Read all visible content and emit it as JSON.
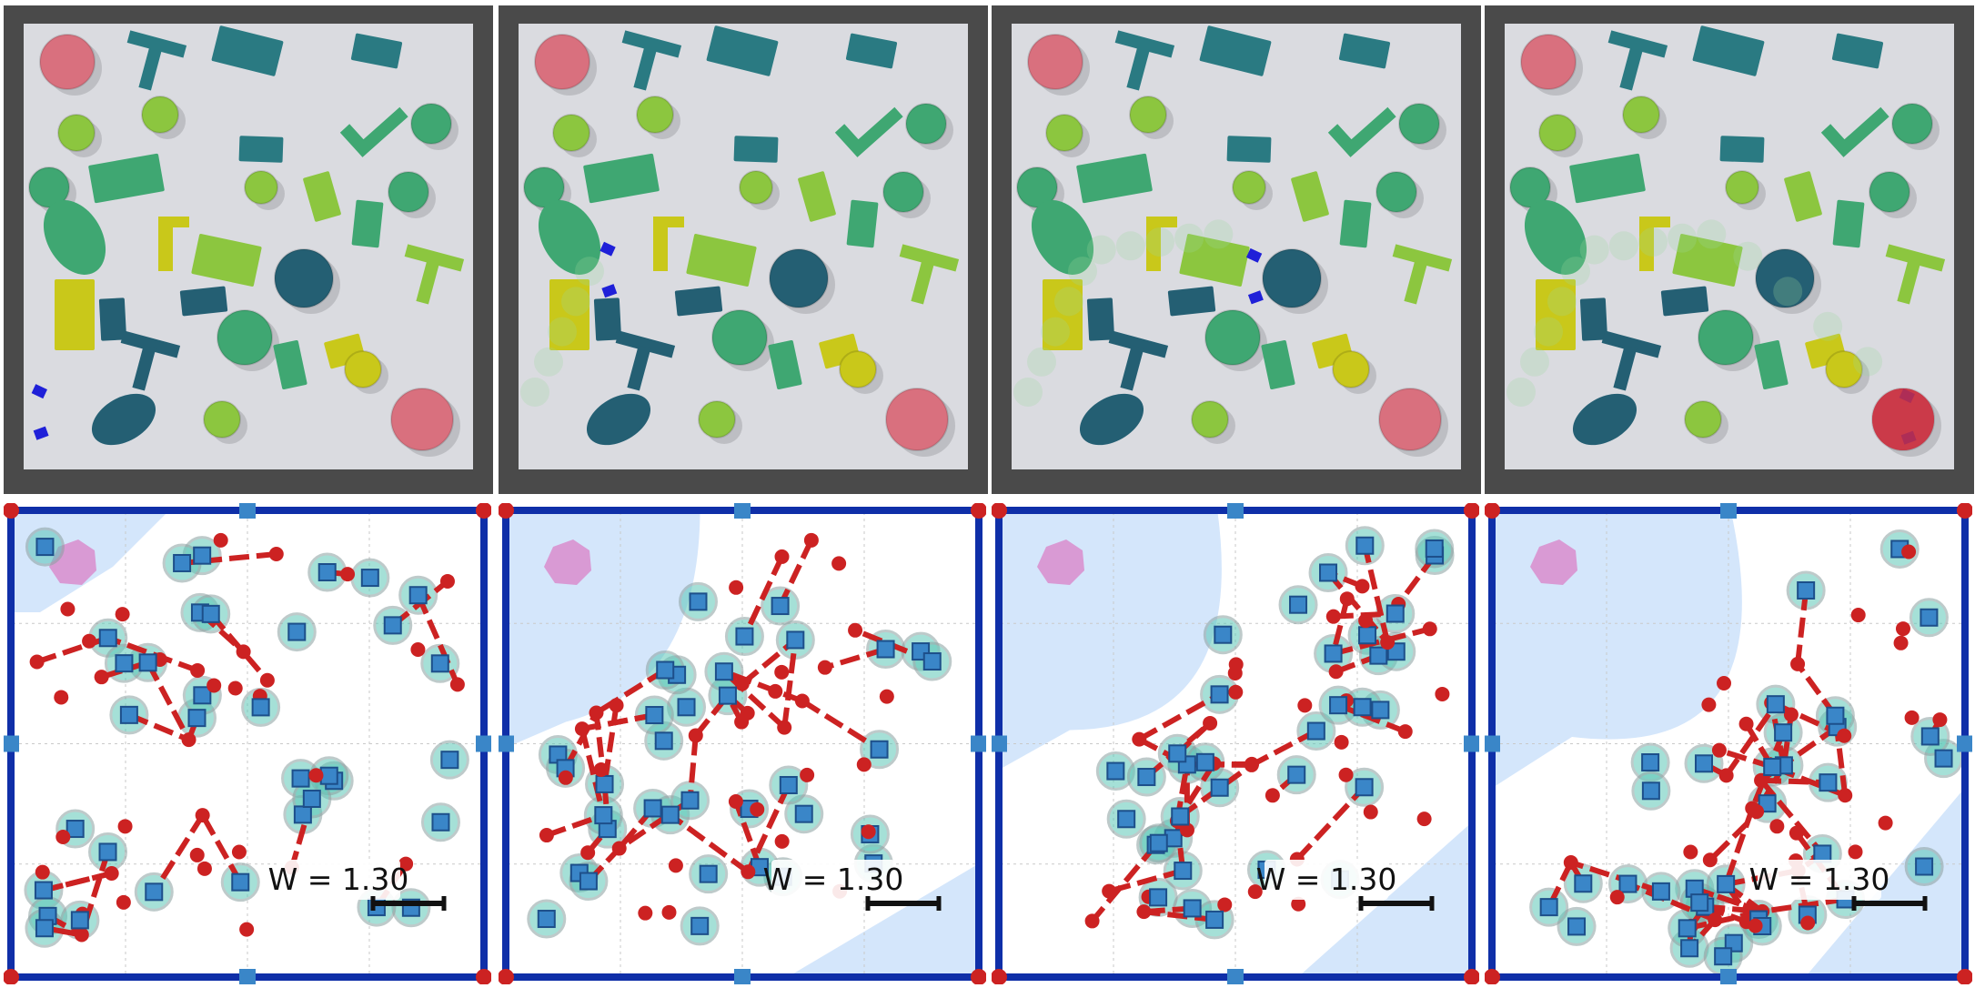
{
  "figure": {
    "panels": [
      {
        "id": 1,
        "scale_label": "W = 1.30",
        "robot_moved_fraction": 0.0
      },
      {
        "id": 2,
        "scale_label": "W = 1.30",
        "robot_moved_fraction": 0.35
      },
      {
        "id": 3,
        "scale_label": "W = 1.30",
        "robot_moved_fraction": 0.7
      },
      {
        "id": 4,
        "scale_label": "W = 1.30",
        "robot_moved_fraction": 1.0
      }
    ]
  },
  "colors": {
    "wall": "#4a4a4a",
    "floor": "#dadbe0",
    "teal": "#2a7a82",
    "dark_teal": "#245f73",
    "green": "#3fa772",
    "lime": "#8cc63f",
    "yellow": "#c9c81a",
    "pink": "#d9707e",
    "robot_blue": "#1f20d8",
    "graph_border": "#0f2fa8",
    "node_blue": "#3a86c8",
    "edge_red": "#cc2222",
    "free_space": "#d4e6fb",
    "obstacle_fill": "#5cc7b8"
  }
}
